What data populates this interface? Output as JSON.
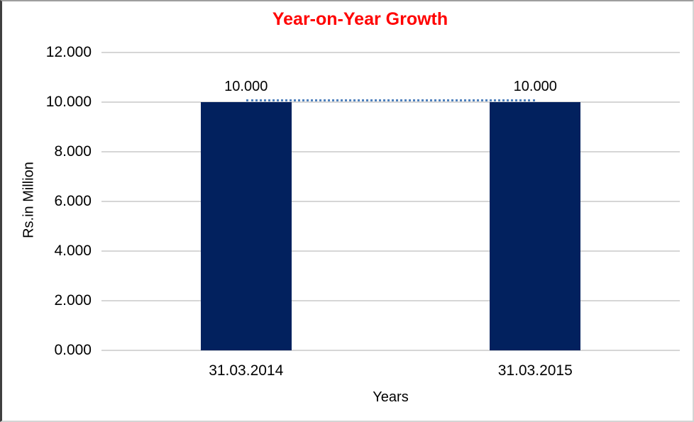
{
  "chart": {
    "title": "Year-on-Year Growth",
    "x_axis_title": "Years",
    "y_axis_title": "Rs.in Million"
  },
  "chart_data": {
    "type": "bar",
    "title": "Year-on-Year Growth",
    "categories": [
      "31.03.2014",
      "31.03.2015"
    ],
    "series": [
      {
        "name": "value-bars",
        "type": "bar",
        "values": [
          10.0,
          10.0
        ],
        "data_labels": [
          "10.000",
          "10.000"
        ],
        "color": "#02215E"
      },
      {
        "name": "trendline",
        "type": "line",
        "line_style": "dotted",
        "values": [
          10.0,
          10.0
        ],
        "color": "#4F81BD"
      }
    ],
    "xlabel": "Years",
    "ylabel": "Rs.in Million",
    "ylim": [
      0,
      12
    ],
    "yticks": [
      0,
      2,
      4,
      6,
      8,
      10,
      12
    ],
    "ytick_labels": [
      "0.000",
      "2.000",
      "4.000",
      "6.000",
      "8.000",
      "10.000",
      "12.000"
    ],
    "grid": true,
    "legend": "none",
    "title_color": "#FF0000",
    "gridline_color": "#D6D6D6"
  }
}
